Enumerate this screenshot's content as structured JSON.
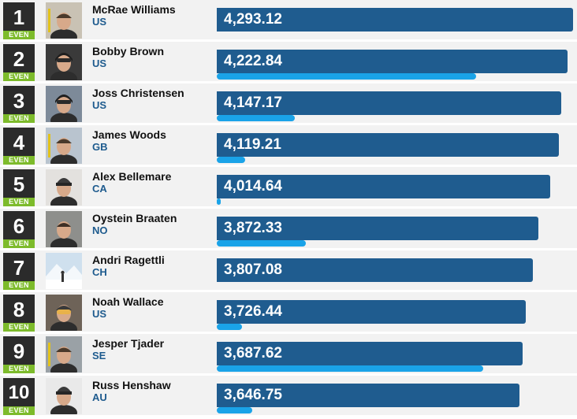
{
  "badge_label": "EVEN",
  "colors": {
    "bar": "#1f5c8f",
    "sub_bar": "#1aa3e8",
    "badge": "#7dbb2b",
    "rank_box": "#2b2b2b",
    "row_bg": "#f2f2f2",
    "country_text": "#1e5b8e"
  },
  "chart_data": {
    "type": "bar",
    "orientation": "horizontal",
    "categories": [
      "McRae Williams",
      "Bobby Brown",
      "Joss Christensen",
      "James Woods",
      "Alex Bellemare",
      "Oystein Braaten",
      "Andri Ragettli",
      "Noah Wallace",
      "Jesper Tjader",
      "Russ Henshaw"
    ],
    "values": [
      4293.12,
      4222.84,
      4147.17,
      4119.21,
      4014.64,
      3872.33,
      3807.08,
      3726.44,
      3687.62,
      3646.75
    ],
    "secondary_fraction": [
      0.0,
      0.73,
      0.22,
      0.08,
      0.01,
      0.25,
      0.0,
      0.07,
      0.75,
      0.1
    ],
    "title": "",
    "xlabel": "",
    "ylabel": "",
    "grid": false,
    "legend": "none"
  },
  "rows": [
    {
      "rank": "1",
      "name": "McRae Williams",
      "country": "US",
      "score": "4,293.12",
      "value": 4293.12,
      "sub": 0.0,
      "avatar_icon": "skier-portrait-icon"
    },
    {
      "rank": "2",
      "name": "Bobby Brown",
      "country": "US",
      "score": "4,222.84",
      "value": 4222.84,
      "sub": 0.73,
      "avatar_icon": "helmet-portrait-icon"
    },
    {
      "rank": "3",
      "name": "Joss Christensen",
      "country": "US",
      "score": "4,147.17",
      "value": 4147.17,
      "sub": 0.22,
      "avatar_icon": "helmet-portrait-icon"
    },
    {
      "rank": "4",
      "name": "James Woods",
      "country": "GB",
      "score": "4,119.21",
      "value": 4119.21,
      "sub": 0.08,
      "avatar_icon": "skier-portrait-icon"
    },
    {
      "rank": "5",
      "name": "Alex Bellemare",
      "country": "CA",
      "score": "4,014.64",
      "value": 4014.64,
      "sub": 0.01,
      "avatar_icon": "beanie-portrait-icon"
    },
    {
      "rank": "6",
      "name": "Oystein Braaten",
      "country": "NO",
      "score": "3,872.33",
      "value": 3872.33,
      "sub": 0.25,
      "avatar_icon": "face-portrait-icon"
    },
    {
      "rank": "7",
      "name": "Andri Ragettli",
      "country": "CH",
      "score": "3,807.08",
      "value": 3807.08,
      "sub": 0.0,
      "avatar_icon": "mountain-portrait-icon"
    },
    {
      "rank": "8",
      "name": "Noah Wallace",
      "country": "US",
      "score": "3,726.44",
      "value": 3726.44,
      "sub": 0.07,
      "avatar_icon": "goggles-portrait-icon"
    },
    {
      "rank": "9",
      "name": "Jesper Tjader",
      "country": "SE",
      "score": "3,687.62",
      "value": 3687.62,
      "sub": 0.75,
      "avatar_icon": "skier-portrait-icon"
    },
    {
      "rank": "10",
      "name": "Russ Henshaw",
      "country": "AU",
      "score": "3,646.75",
      "value": 3646.75,
      "sub": 0.1,
      "avatar_icon": "beanie-portrait-icon"
    }
  ]
}
